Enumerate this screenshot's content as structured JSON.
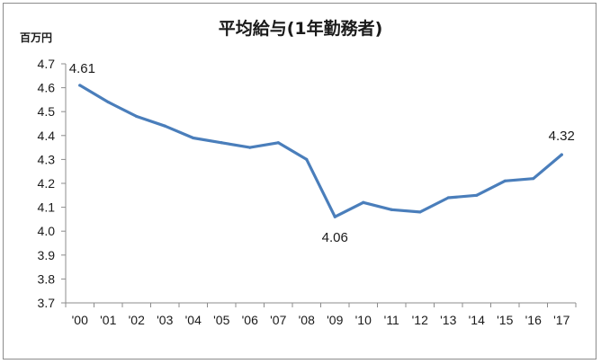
{
  "chart_data": {
    "type": "line",
    "title": "平均給与(1年勤務者)",
    "ylabel": "百万円",
    "xlabel": "",
    "categories": [
      "'00",
      "'01",
      "'02",
      "'03",
      "'04",
      "'05",
      "'06",
      "'07",
      "'08",
      "'09",
      "'10",
      "'11",
      "'12",
      "'13",
      "'14",
      "'15",
      "'16",
      "'17"
    ],
    "series": [
      {
        "values": [
          4.61,
          4.54,
          4.48,
          4.44,
          4.39,
          4.37,
          4.35,
          4.37,
          4.3,
          4.06,
          4.12,
          4.09,
          4.08,
          4.14,
          4.15,
          4.21,
          4.22,
          4.32
        ]
      }
    ],
    "ylim": [
      3.7,
      4.7
    ],
    "yticks": [
      "3.7",
      "3.8",
      "3.9",
      "4.0",
      "4.1",
      "4.2",
      "4.3",
      "4.4",
      "4.5",
      "4.6",
      "4.7"
    ],
    "data_labels": [
      {
        "index": 0,
        "text": "4.61"
      },
      {
        "index": 9,
        "text": "4.06"
      },
      {
        "index": 17,
        "text": "4.32"
      }
    ],
    "grid": false,
    "legend": "none",
    "line_color": "#4a7ebb"
  }
}
